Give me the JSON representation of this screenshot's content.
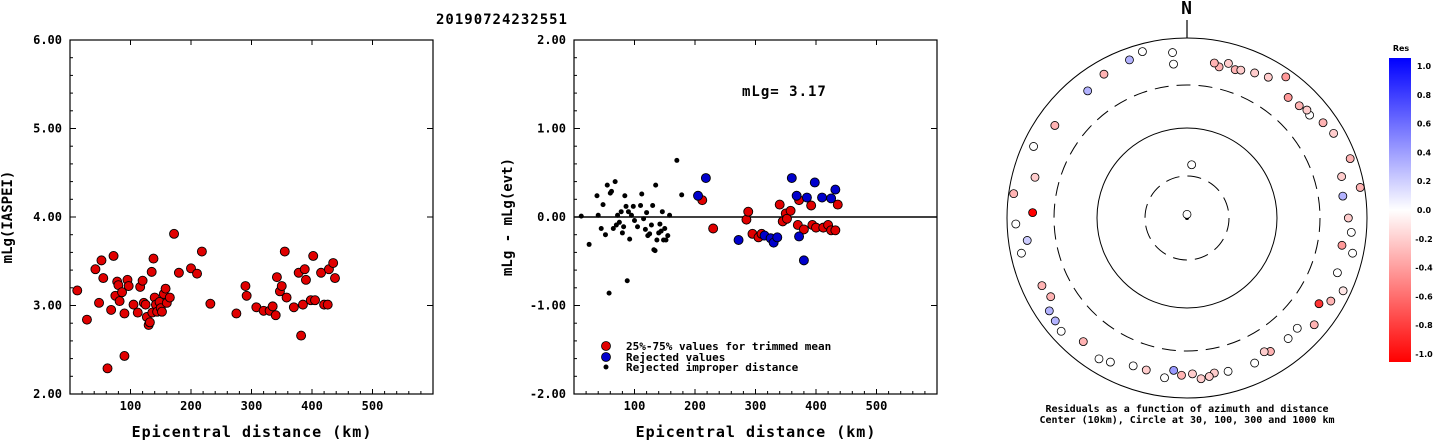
{
  "title": "20190724232551",
  "chart_data": [
    {
      "type": "scatter",
      "ylabel": "mLg(IASPEI)",
      "xlabel": "Epicentral distance (km)",
      "xlim": [
        0,
        600
      ],
      "ylim": [
        2.0,
        6.0
      ],
      "xticks": [
        "100",
        "200",
        "300",
        "400",
        "500"
      ],
      "yticks": [
        "2.00",
        "3.00",
        "4.00",
        "5.00",
        "6.00"
      ],
      "series": [
        {
          "color": "#e00000",
          "points": [
            [
              12,
              3.17
            ],
            [
              28,
              2.84
            ],
            [
              42,
              3.41
            ],
            [
              48,
              3.03
            ],
            [
              52,
              3.51
            ],
            [
              55,
              3.31
            ],
            [
              62,
              2.29
            ],
            [
              68,
              2.95
            ],
            [
              72,
              3.56
            ],
            [
              75,
              3.11
            ],
            [
              78,
              3.27
            ],
            [
              80,
              3.23
            ],
            [
              82,
              3.05
            ],
            [
              86,
              3.15
            ],
            [
              90,
              2.43
            ],
            [
              90,
              2.91
            ],
            [
              95,
              3.29
            ],
            [
              97,
              3.22
            ],
            [
              105,
              3.01
            ],
            [
              112,
              2.92
            ],
            [
              116,
              3.21
            ],
            [
              120,
              3.28
            ],
            [
              122,
              3.03
            ],
            [
              125,
              3.01
            ],
            [
              127,
              2.87
            ],
            [
              130,
              2.78
            ],
            [
              132,
              2.81
            ],
            [
              135,
              3.38
            ],
            [
              136,
              2.92
            ],
            [
              138,
              3.53
            ],
            [
              140,
              3.09
            ],
            [
              142,
              3.01
            ],
            [
              144,
              2.93
            ],
            [
              148,
              3.04
            ],
            [
              150,
              2.97
            ],
            [
              152,
              2.93
            ],
            [
              155,
              3.13
            ],
            [
              158,
              3.19
            ],
            [
              160,
              3.03
            ],
            [
              165,
              3.09
            ],
            [
              172,
              3.81
            ],
            [
              180,
              3.37
            ],
            [
              200,
              3.42
            ],
            [
              210,
              3.36
            ],
            [
              218,
              3.61
            ],
            [
              232,
              3.02
            ],
            [
              275,
              2.91
            ],
            [
              290,
              3.22
            ],
            [
              292,
              3.11
            ],
            [
              308,
              2.98
            ],
            [
              320,
              2.94
            ],
            [
              330,
              2.94
            ],
            [
              335,
              2.99
            ],
            [
              340,
              2.89
            ],
            [
              342,
              3.32
            ],
            [
              347,
              3.16
            ],
            [
              350,
              3.22
            ],
            [
              355,
              3.61
            ],
            [
              358,
              3.09
            ],
            [
              370,
              2.98
            ],
            [
              378,
              3.37
            ],
            [
              382,
              2.66
            ],
            [
              385,
              3.01
            ],
            [
              388,
              3.41
            ],
            [
              390,
              3.29
            ],
            [
              398,
              3.06
            ],
            [
              402,
              3.56
            ],
            [
              405,
              3.06
            ],
            [
              415,
              3.37
            ],
            [
              420,
              3.01
            ],
            [
              426,
              3.01
            ],
            [
              428,
              3.41
            ],
            [
              435,
              3.48
            ],
            [
              438,
              3.31
            ]
          ]
        }
      ]
    },
    {
      "type": "scatter",
      "ylabel": "mLg - mLg(evt)",
      "xlabel": "Epicentral distance (km)",
      "xlim": [
        0,
        600
      ],
      "ylim": [
        -2.0,
        2.0
      ],
      "xticks": [
        "100",
        "200",
        "300",
        "400",
        "500"
      ],
      "yticks": [
        "-2.00",
        "-1.00",
        "0.00",
        "1.00",
        "2.00"
      ],
      "annotation": "mLg= 3.17",
      "reference_line": 0,
      "series": [
        {
          "name": "25%-75% values for trimmed mean",
          "color": "#e00000",
          "points": [
            [
              212,
              0.19
            ],
            [
              230,
              -0.13
            ],
            [
              285,
              -0.03
            ],
            [
              288,
              0.06
            ],
            [
              295,
              -0.19
            ],
            [
              305,
              -0.23
            ],
            [
              310,
              -0.19
            ],
            [
              340,
              0.14
            ],
            [
              345,
              -0.05
            ],
            [
              350,
              0.04
            ],
            [
              352,
              -0.02
            ],
            [
              358,
              0.07
            ],
            [
              370,
              -0.09
            ],
            [
              372,
              0.19
            ],
            [
              380,
              -0.14
            ],
            [
              392,
              0.13
            ],
            [
              394,
              -0.09
            ],
            [
              400,
              -0.12
            ],
            [
              412,
              -0.12
            ],
            [
              420,
              -0.09
            ],
            [
              425,
              -0.15
            ],
            [
              432,
              -0.15
            ],
            [
              436,
              0.14
            ]
          ]
        },
        {
          "name": "Rejected values",
          "color": "#0000cc",
          "points": [
            [
              205,
              0.24
            ],
            [
              218,
              0.44
            ],
            [
              272,
              -0.26
            ],
            [
              315,
              -0.21
            ],
            [
              325,
              -0.24
            ],
            [
              330,
              -0.29
            ],
            [
              336,
              -0.23
            ],
            [
              360,
              0.44
            ],
            [
              368,
              0.24
            ],
            [
              372,
              -0.22
            ],
            [
              380,
              -0.49
            ],
            [
              385,
              0.22
            ],
            [
              398,
              0.39
            ],
            [
              410,
              0.22
            ],
            [
              425,
              0.21
            ],
            [
              432,
              0.31
            ]
          ]
        },
        {
          "name": "Rejected improper distance",
          "color": "#000000",
          "small": true,
          "points": [
            [
              12,
              0.01
            ],
            [
              25,
              -0.31
            ],
            [
              38,
              0.24
            ],
            [
              40,
              0.02
            ],
            [
              45,
              -0.13
            ],
            [
              48,
              0.14
            ],
            [
              52,
              -0.2
            ],
            [
              55,
              0.36
            ],
            [
              58,
              -0.86
            ],
            [
              60,
              0.27
            ],
            [
              62,
              0.29
            ],
            [
              65,
              -0.13
            ],
            [
              68,
              0.4
            ],
            [
              70,
              -0.09
            ],
            [
              72,
              0.02
            ],
            [
              75,
              -0.06
            ],
            [
              78,
              0.06
            ],
            [
              80,
              -0.18
            ],
            [
              82,
              -0.11
            ],
            [
              84,
              0.24
            ],
            [
              86,
              0.12
            ],
            [
              88,
              -0.72
            ],
            [
              90,
              0.06
            ],
            [
              92,
              -0.25
            ],
            [
              95,
              0.02
            ],
            [
              98,
              0.12
            ],
            [
              100,
              -0.04
            ],
            [
              105,
              -0.11
            ],
            [
              110,
              0.13
            ],
            [
              112,
              0.26
            ],
            [
              115,
              -0.02
            ],
            [
              118,
              -0.14
            ],
            [
              120,
              0.05
            ],
            [
              122,
              -0.21
            ],
            [
              125,
              -0.19
            ],
            [
              128,
              -0.09
            ],
            [
              130,
              0.13
            ],
            [
              132,
              -0.37
            ],
            [
              134,
              -0.38
            ],
            [
              135,
              0.36
            ],
            [
              137,
              -0.26
            ],
            [
              140,
              -0.18
            ],
            [
              142,
              -0.08
            ],
            [
              144,
              -0.16
            ],
            [
              146,
              0.06
            ],
            [
              148,
              -0.26
            ],
            [
              150,
              -0.13
            ],
            [
              152,
              -0.26
            ],
            [
              155,
              -0.21
            ],
            [
              158,
              0.02
            ],
            [
              170,
              0.64
            ],
            [
              178,
              0.25
            ]
          ]
        }
      ]
    },
    {
      "type": "polar-scatter",
      "north_label": "N",
      "caption_line1": "Residuals as a function of azimuth and distance",
      "caption_line2": "Center (10km), Circle at 30, 100, 300 and 1000 km",
      "rings_km": [
        30,
        100,
        300,
        1000
      ],
      "colorbar_title": "Res",
      "colorbar_ticks": [
        "1.0",
        "0.8",
        "0.6",
        "0.4",
        "0.2",
        "0.0",
        "-0.2",
        "-0.4",
        "-0.6",
        "-0.8",
        "-1.0"
      ],
      "points_azimuth_distance_residual": [
        [
          0,
          11,
          0.0
        ],
        [
          5,
          40,
          0.0
        ],
        [
          355,
          520,
          0.0
        ],
        [
          12,
          520,
          -0.3
        ],
        [
          18,
          540,
          -0.3
        ],
        [
          20,
          560,
          -0.2
        ],
        [
          25,
          600,
          -0.2
        ],
        [
          30,
          640,
          -0.2
        ],
        [
          10,
          560,
          -0.3
        ],
        [
          15,
          600,
          -0.2
        ],
        [
          35,
          820,
          -0.4
        ],
        [
          40,
          560,
          -0.4
        ],
        [
          45,
          580,
          -0.3
        ],
        [
          50,
          600,
          0.0
        ],
        [
          48,
          620,
          -0.2
        ],
        [
          55,
          700,
          -0.3
        ],
        [
          60,
          760,
          -0.2
        ],
        [
          70,
          850,
          -0.3
        ],
        [
          75,
          600,
          -0.2
        ],
        [
          80,
          900,
          -0.3
        ],
        [
          82,
          560,
          0.3
        ],
        [
          90,
          620,
          -0.2
        ],
        [
          95,
          680,
          0.0
        ],
        [
          100,
          560,
          -0.4
        ],
        [
          102,
          760,
          0.0
        ],
        [
          110,
          600,
          0.0
        ],
        [
          115,
          820,
          -0.1
        ],
        [
          120,
          700,
          -0.3
        ],
        [
          123,
          560,
          -0.8
        ],
        [
          130,
          700,
          -0.3
        ],
        [
          135,
          540,
          0.0
        ],
        [
          140,
          560,
          0.0
        ],
        [
          148,
          560,
          -0.3
        ],
        [
          150,
          520,
          -0.2
        ],
        [
          155,
          600,
          0.0
        ],
        [
          165,
          580,
          0.0
        ],
        [
          170,
          560,
          -0.2
        ],
        [
          172,
          600,
          -0.2
        ],
        [
          175,
          620,
          -0.2
        ],
        [
          178,
          540,
          -0.2
        ],
        [
          182,
          560,
          -0.3
        ],
        [
          185,
          500,
          0.4
        ],
        [
          188,
          620,
          0.0
        ],
        [
          195,
          560,
          -0.2
        ],
        [
          200,
          560,
          0.0
        ],
        [
          208,
          650,
          0.0
        ],
        [
          212,
          700,
          0.0
        ],
        [
          220,
          620,
          -0.3
        ],
        [
          228,
          760,
          0.0
        ],
        [
          232,
          720,
          0.3
        ],
        [
          236,
          700,
          0.3
        ],
        [
          240,
          560,
          -0.3
        ],
        [
          245,
          600,
          -0.3
        ],
        [
          258,
          760,
          0.0
        ],
        [
          262,
          620,
          0.2
        ],
        [
          268,
          800,
          0.0
        ],
        [
          272,
          520,
          -1.0
        ],
        [
          278,
          880,
          -0.3
        ],
        [
          285,
          560,
          -0.2
        ],
        [
          295,
          760,
          0.0
        ],
        [
          305,
          620,
          -0.3
        ],
        [
          322,
          620,
          0.3
        ],
        [
          330,
          700,
          -0.3
        ],
        [
          340,
          740,
          0.3
        ],
        [
          345,
          820,
          0.0
        ],
        [
          355,
          700,
          0.0
        ]
      ]
    }
  ]
}
